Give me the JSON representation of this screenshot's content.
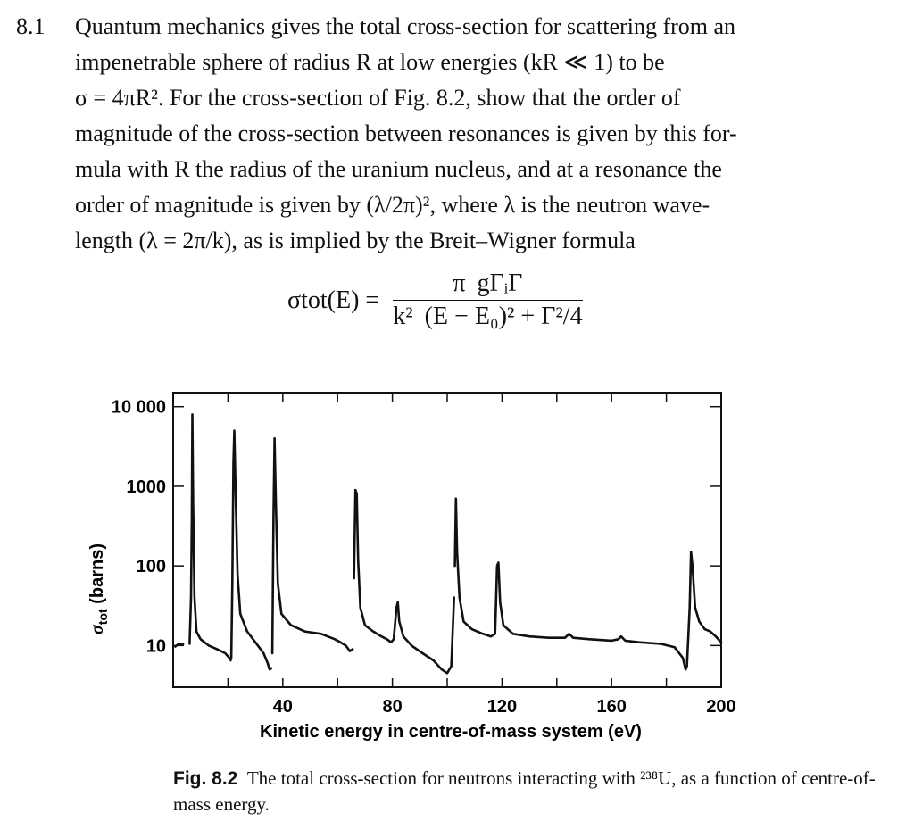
{
  "problem": {
    "number": "8.1",
    "lines": [
      "Quantum mechanics gives the total cross-section for scattering from an",
      "impenetrable sphere of radius R at low energies (kR ≪ 1) to be",
      "σ = 4πR². For the cross-section of Fig. 8.2, show that the order of",
      "magnitude of the cross-section between resonances is given by this for-",
      "mula with R the radius of the uranium nucleus, and at a resonance the",
      "order of magnitude is given by (λ/2π)², where λ is the neutron wave-",
      "length (λ = 2π/k), as is implied by the Breit–Wigner formula"
    ]
  },
  "equation": {
    "lhs": "σtot(E) =",
    "numerator_left": "π",
    "numerator_right": "gΓᵢΓ",
    "denominator_left": "k²",
    "denominator_right": "(E − E₀)² + Γ²/4"
  },
  "chart_data": {
    "type": "line",
    "title": "",
    "xlabel": "Kinetic energy in centre-of-mass system (eV)",
    "ylabel": "σtot (barns)",
    "y_scale": "log",
    "xlim": [
      0,
      200
    ],
    "ylim": [
      3,
      15000
    ],
    "x_ticks": [
      40,
      80,
      120,
      160,
      200
    ],
    "x_tick_labels": [
      "40",
      "80",
      "120",
      "160",
      "200"
    ],
    "y_ticks": [
      10,
      100,
      1000,
      10000
    ],
    "y_tick_labels": [
      "10",
      "100",
      "1000",
      "10 000"
    ],
    "grid": false,
    "series": [
      {
        "baseline": [
          [
            0.5,
            9.5
          ],
          [
            2,
            10.5
          ],
          [
            4,
            10.5
          ],
          [
            6,
            10
          ],
          [
            7,
            12
          ],
          [
            8,
            14
          ],
          [
            10,
            12
          ],
          [
            14,
            10
          ],
          [
            18,
            9
          ],
          [
            20,
            8
          ],
          [
            21,
            7
          ]
        ],
        "segments": [
          [
            [
              6,
              10.5
            ],
            [
              6.5,
              40
            ],
            [
              6.8,
              400
            ],
            [
              7,
              8000
            ],
            [
              7.3,
              600
            ],
            [
              7.8,
              40
            ],
            [
              8.5,
              15
            ],
            [
              10,
              12
            ],
            [
              13,
              10
            ],
            [
              16,
              9
            ],
            [
              19,
              8
            ],
            [
              20.5,
              7
            ],
            [
              21,
              6.5
            ]
          ],
          [
            [
              21.2,
              7
            ],
            [
              21.6,
              60
            ],
            [
              22,
              2000
            ],
            [
              22.3,
              5000
            ],
            [
              22.8,
              800
            ],
            [
              23.5,
              80
            ],
            [
              24.5,
              25
            ],
            [
              27,
              15
            ],
            [
              30,
              11
            ],
            [
              33,
              8
            ],
            [
              34.5,
              6
            ],
            [
              35.2,
              5
            ],
            [
              35.8,
              5.2
            ]
          ],
          [
            [
              36.2,
              8
            ],
            [
              36.6,
              400
            ],
            [
              37,
              4000
            ],
            [
              37.5,
              600
            ],
            [
              38.2,
              60
            ],
            [
              39.5,
              25
            ],
            [
              43,
              18
            ],
            [
              48,
              15
            ],
            [
              54,
              14
            ],
            [
              59,
              12
            ],
            [
              61,
              11
            ],
            [
              63,
              10
            ],
            [
              64.5,
              8.5
            ],
            [
              65.5,
              9
            ]
          ],
          [
            [
              66,
              70
            ],
            [
              66.5,
              900
            ],
            [
              67,
              800
            ],
            [
              67.5,
              120
            ],
            [
              68.3,
              30
            ],
            [
              70,
              18
            ],
            [
              73,
              15
            ],
            [
              76,
              13
            ],
            [
              78,
              12
            ],
            [
              79.5,
              11
            ],
            [
              80.5,
              12
            ],
            [
              81.5,
              30
            ],
            [
              82,
              35
            ],
            [
              82.5,
              20
            ],
            [
              84,
              13
            ],
            [
              87,
              10
            ],
            [
              91,
              8
            ],
            [
              95,
              6.5
            ],
            [
              98,
              5
            ],
            [
              100,
              4.5
            ],
            [
              101.5,
              5.5
            ],
            [
              102.5,
              40
            ]
          ],
          [
            [
              102.8,
              100
            ],
            [
              103.2,
              700
            ],
            [
              103.6,
              150
            ],
            [
              104.5,
              40
            ],
            [
              106,
              20
            ],
            [
              109,
              16
            ],
            [
              113,
              14
            ],
            [
              116,
              13
            ],
            [
              117.5,
              14
            ],
            [
              118.2,
              100
            ],
            [
              118.7,
              110
            ],
            [
              119.3,
              35
            ],
            [
              120.5,
              18
            ],
            [
              124,
              14
            ],
            [
              130,
              13
            ],
            [
              137,
              12.5
            ],
            [
              143,
              12.5
            ],
            [
              144.5,
              14
            ],
            [
              146,
              12.5
            ],
            [
              152,
              12
            ],
            [
              160,
              11.5
            ],
            [
              162.5,
              12
            ],
            [
              163.5,
              13
            ],
            [
              165,
              11.5
            ],
            [
              170,
              11
            ],
            [
              178,
              10.5
            ],
            [
              183,
              9.5
            ],
            [
              186,
              7
            ],
            [
              187,
              5
            ],
            [
              187.5,
              5.5
            ],
            [
              188.5,
              30
            ],
            [
              189,
              150
            ],
            [
              189.5,
              100
            ],
            [
              190.5,
              30
            ],
            [
              192,
              20
            ],
            [
              194,
              16
            ],
            [
              196,
              15
            ],
            [
              198,
              13
            ],
            [
              200,
              11
            ]
          ]
        ]
      }
    ]
  },
  "caption": {
    "label": "Fig. 8.2",
    "text": "The total cross-section for neutrons interacting with ²³⁸U, as a function of centre-of-mass energy."
  }
}
